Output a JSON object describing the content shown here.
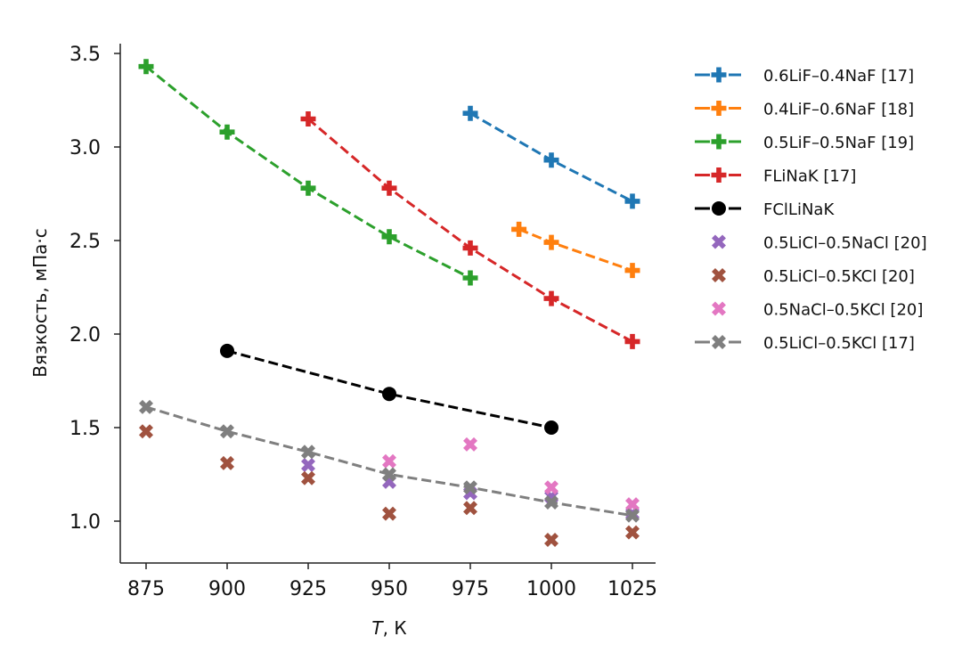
{
  "chart_data": {
    "type": "line",
    "title": "",
    "xlabel": "T, К",
    "xlabel_italic_part": "T",
    "xlabel_rest": ", К",
    "ylabel": "Вязкость, мПа·с",
    "xlim": [
      867,
      1032
    ],
    "ylim": [
      0.78,
      3.57
    ],
    "xticks": [
      875,
      900,
      925,
      950,
      975,
      1000,
      1025
    ],
    "yticks": [
      "1.0",
      "1.5",
      "2.0",
      "2.5",
      "3.0",
      "3.5"
    ],
    "grid": false,
    "legend_position": "outside-right",
    "series": [
      {
        "name": "0.6LiF–0.4NaF [17]",
        "color": "#1f77b4",
        "marker": "plus",
        "line": "dashed",
        "x": [
          975,
          1000,
          1025
        ],
        "y": [
          3.18,
          2.93,
          2.71
        ]
      },
      {
        "name": "0.4LiF–0.6NaF [18]",
        "color": "#ff7f0e",
        "marker": "plus",
        "line": "dashed",
        "x": [
          990,
          1000,
          1025
        ],
        "y": [
          2.56,
          2.49,
          2.34
        ]
      },
      {
        "name": "0.5LiF–0.5NaF [19]",
        "color": "#2ca02c",
        "marker": "plus",
        "line": "dashed",
        "x": [
          875,
          900,
          925,
          950,
          975
        ],
        "y": [
          3.43,
          3.08,
          2.78,
          2.52,
          2.3
        ]
      },
      {
        "name": "FLiNaK [17]",
        "color": "#d62728",
        "marker": "plus",
        "line": "dashed",
        "x": [
          925,
          950,
          975,
          1000,
          1025
        ],
        "y": [
          3.15,
          2.78,
          2.46,
          2.19,
          1.96
        ]
      },
      {
        "name": "FClLiNaK",
        "color": "#000000",
        "marker": "circle",
        "line": "dashed",
        "x": [
          900,
          950,
          1000
        ],
        "y": [
          1.91,
          1.68,
          1.5
        ]
      },
      {
        "name": "0.5LiCl–0.5NaCl [20]",
        "color": "#9467bd",
        "marker": "x",
        "line": "none",
        "x": [
          925,
          950,
          975,
          1000,
          1025
        ],
        "y": [
          1.3,
          1.21,
          1.15,
          1.13,
          1.04
        ]
      },
      {
        "name": "0.5LiCl–0.5KCl [20]",
        "color": "#a0523f",
        "marker": "x",
        "line": "none",
        "x": [
          875,
          900,
          925,
          950,
          975,
          1000,
          1025
        ],
        "y": [
          1.48,
          1.31,
          1.23,
          1.04,
          1.07,
          0.9,
          0.94
        ]
      },
      {
        "name": "0.5NaCl–0.5KCl [20]",
        "color": "#e377c2",
        "marker": "x",
        "line": "none",
        "x": [
          950,
          975,
          1000,
          1025
        ],
        "y": [
          1.32,
          1.41,
          1.18,
          1.09
        ]
      },
      {
        "name": "0.5LiCl–0.5KCl [17]",
        "color": "#7f7f7f",
        "marker": "x",
        "line": "dashed",
        "x": [
          875,
          900,
          925,
          950,
          975,
          1000,
          1025
        ],
        "y": [
          1.61,
          1.48,
          1.37,
          1.25,
          1.18,
          1.1,
          1.03
        ]
      }
    ]
  }
}
